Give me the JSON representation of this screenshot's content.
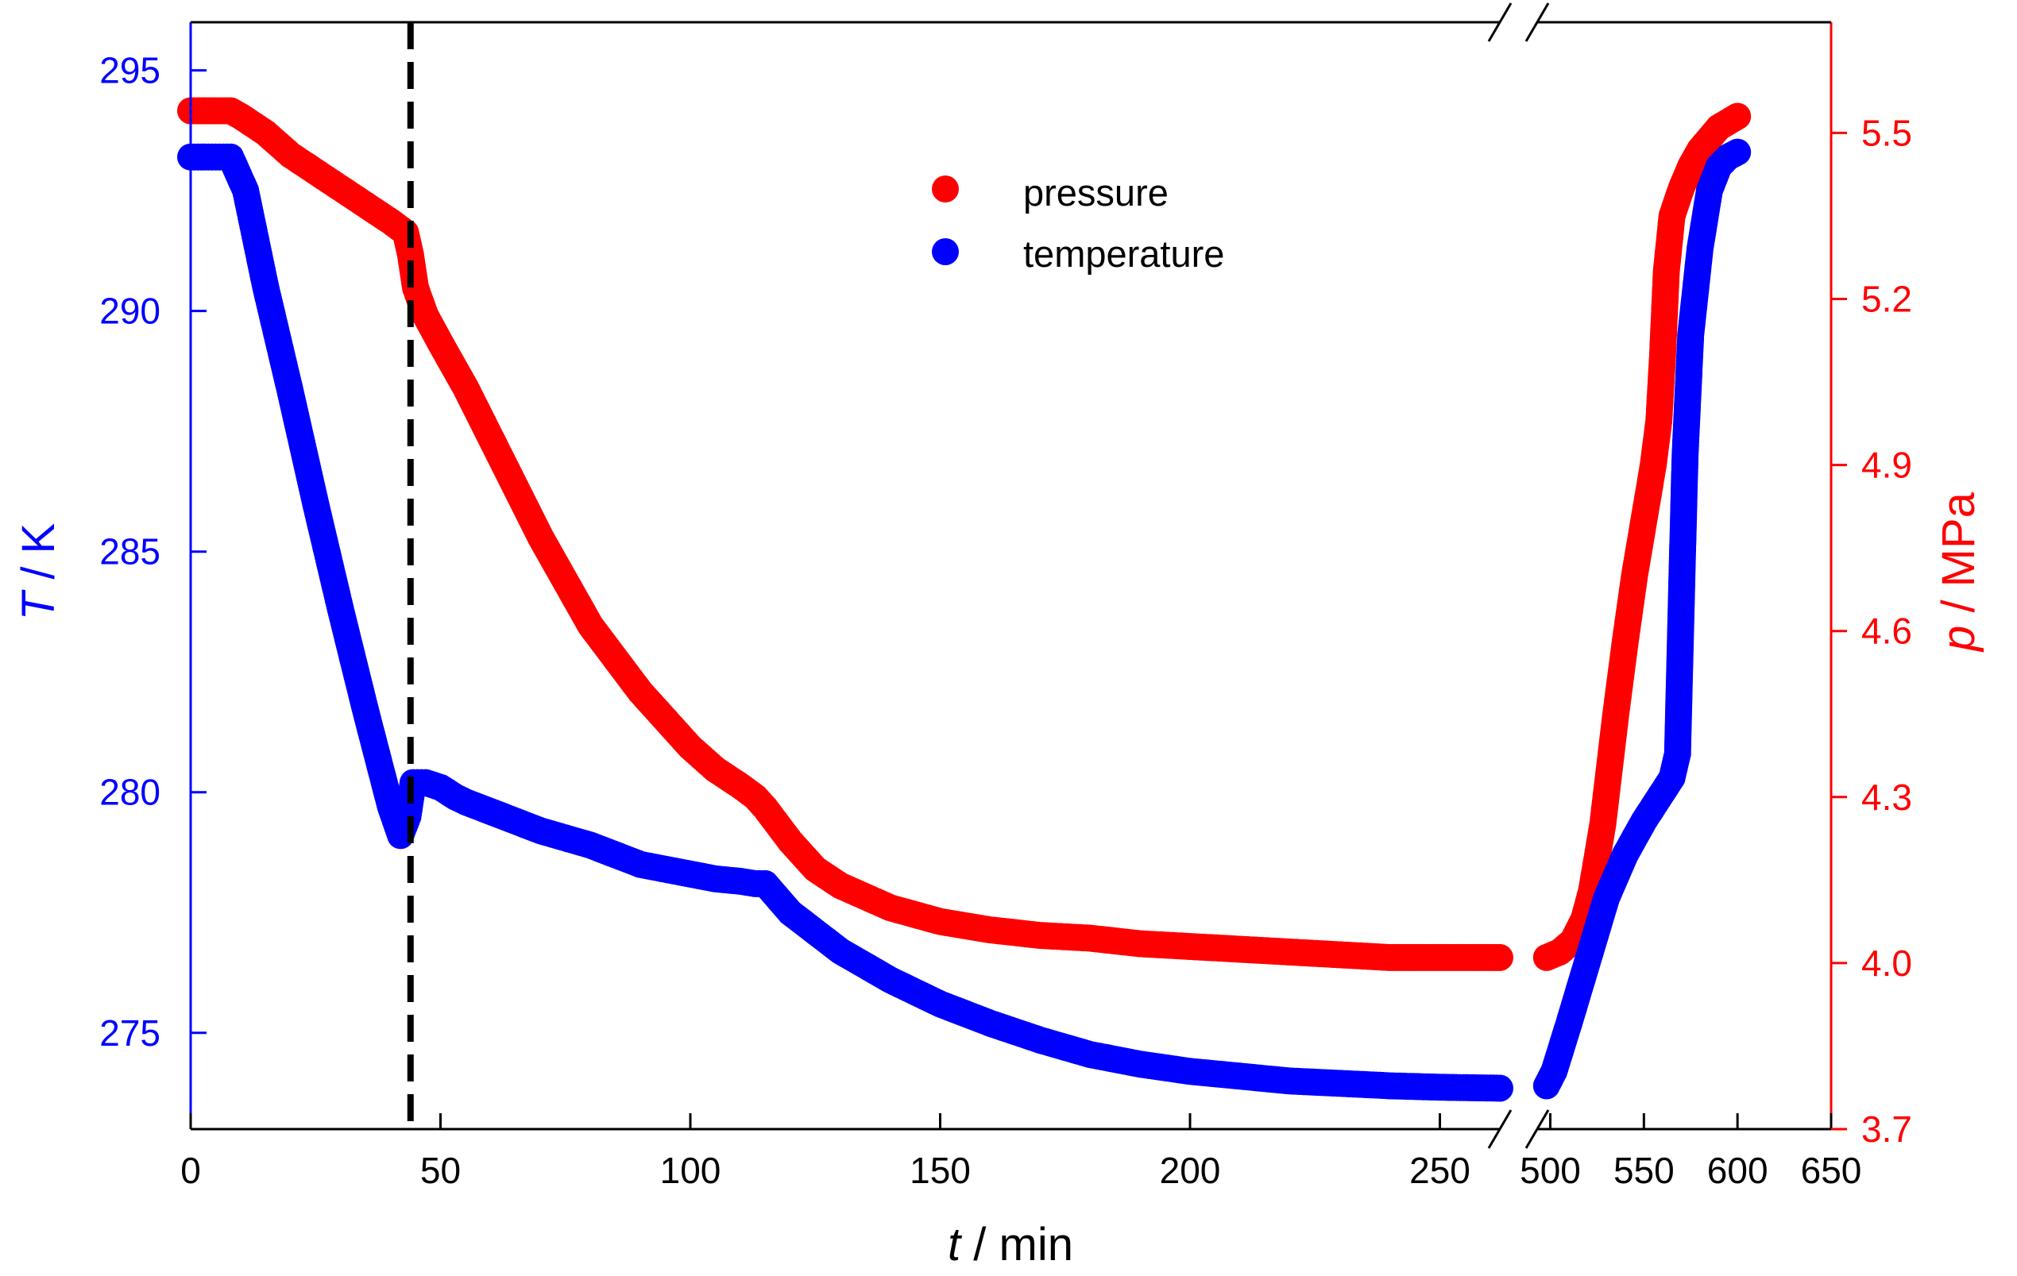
{
  "colors": {
    "temperature": "#0000FF",
    "pressure": "#FF0000",
    "axis": "#000000",
    "marker_line": "#000000"
  },
  "chart_data": {
    "type": "scatter",
    "title": "",
    "xlabel": {
      "italic": "t",
      "rest": " / min"
    },
    "ylabel_left": {
      "italic": "T",
      "rest": " / K"
    },
    "ylabel_right": {
      "italic": "p",
      "rest": " / MPa"
    },
    "x_axis_broken": true,
    "x_segments": [
      {
        "xlim": [
          0,
          262
        ],
        "ticks": [
          "0",
          "50",
          "100",
          "150",
          "200",
          "250"
        ],
        "tick_values": [
          0,
          50,
          100,
          150,
          200,
          250
        ]
      },
      {
        "xlim": [
          493,
          650
        ],
        "ticks": [
          "500",
          "550",
          "600",
          "650"
        ],
        "tick_values": [
          500,
          550,
          600,
          650
        ]
      }
    ],
    "y_left": {
      "lim": [
        273,
        296
      ],
      "ticks": [
        "275",
        "280",
        "285",
        "290",
        "295"
      ],
      "tick_values": [
        275,
        280,
        285,
        290,
        295
      ]
    },
    "y_right": {
      "lim": [
        3.7,
        5.7
      ],
      "ticks": [
        "3.7",
        "4.0",
        "4.3",
        "4.6",
        "4.9",
        "5.2",
        "5.5"
      ],
      "tick_values": [
        3.7,
        4.0,
        4.3,
        4.6,
        4.9,
        5.2,
        5.5
      ]
    },
    "vertical_line": {
      "x": 44,
      "style": "dashed"
    },
    "legend": {
      "position": "top-center",
      "entries": [
        "pressure",
        "temperature"
      ]
    },
    "series": [
      {
        "name": "temperature",
        "axis": "left",
        "points": [
          [
            0,
            293.2
          ],
          [
            5,
            293.2
          ],
          [
            8,
            293.2
          ],
          [
            11,
            292.5
          ],
          [
            15,
            290.5
          ],
          [
            20,
            288.3
          ],
          [
            25,
            286.0
          ],
          [
            30,
            283.8
          ],
          [
            35,
            281.7
          ],
          [
            40,
            279.7
          ],
          [
            42,
            279.1
          ],
          [
            43.5,
            279.5
          ],
          [
            44.5,
            280.2
          ],
          [
            47,
            280.2
          ],
          [
            50,
            280.1
          ],
          [
            53,
            279.9
          ],
          [
            55,
            279.8
          ],
          [
            60,
            279.6
          ],
          [
            65,
            279.4
          ],
          [
            70,
            279.2
          ],
          [
            80,
            278.9
          ],
          [
            90,
            278.5
          ],
          [
            100,
            278.3
          ],
          [
            105,
            278.2
          ],
          [
            110,
            278.15
          ],
          [
            113,
            278.1
          ],
          [
            115,
            278.1
          ],
          [
            120,
            277.5
          ],
          [
            130,
            276.7
          ],
          [
            140,
            276.1
          ],
          [
            150,
            275.6
          ],
          [
            160,
            275.2
          ],
          [
            170,
            274.85
          ],
          [
            180,
            274.55
          ],
          [
            190,
            274.35
          ],
          [
            200,
            274.2
          ],
          [
            210,
            274.1
          ],
          [
            220,
            274.0
          ],
          [
            230,
            273.95
          ],
          [
            240,
            273.9
          ],
          [
            250,
            273.87
          ],
          [
            262,
            273.85
          ],
          [
            498,
            273.9
          ],
          [
            502,
            274.2
          ],
          [
            510,
            275.2
          ],
          [
            520,
            276.5
          ],
          [
            530,
            277.8
          ],
          [
            540,
            278.7
          ],
          [
            550,
            279.4
          ],
          [
            560,
            280.0
          ],
          [
            565,
            280.3
          ],
          [
            568,
            280.8
          ],
          [
            570,
            284.0
          ],
          [
            572,
            287.0
          ],
          [
            575,
            289.5
          ],
          [
            580,
            291.3
          ],
          [
            585,
            292.5
          ],
          [
            590,
            293.0
          ],
          [
            595,
            293.2
          ],
          [
            600,
            293.3
          ]
        ]
      },
      {
        "name": "pressure",
        "axis": "right",
        "points": [
          [
            0,
            5.54
          ],
          [
            5,
            5.54
          ],
          [
            8,
            5.54
          ],
          [
            10,
            5.53
          ],
          [
            15,
            5.5
          ],
          [
            20,
            5.46
          ],
          [
            25,
            5.43
          ],
          [
            30,
            5.4
          ],
          [
            35,
            5.37
          ],
          [
            40,
            5.34
          ],
          [
            43,
            5.32
          ],
          [
            44,
            5.28
          ],
          [
            45,
            5.22
          ],
          [
            47,
            5.17
          ],
          [
            50,
            5.12
          ],
          [
            55,
            5.04
          ],
          [
            60,
            4.95
          ],
          [
            65,
            4.86
          ],
          [
            70,
            4.77
          ],
          [
            75,
            4.69
          ],
          [
            80,
            4.61
          ],
          [
            85,
            4.55
          ],
          [
            90,
            4.49
          ],
          [
            95,
            4.44
          ],
          [
            100,
            4.39
          ],
          [
            105,
            4.35
          ],
          [
            110,
            4.32
          ],
          [
            113,
            4.3
          ],
          [
            115,
            4.28
          ],
          [
            120,
            4.22
          ],
          [
            125,
            4.17
          ],
          [
            130,
            4.14
          ],
          [
            140,
            4.1
          ],
          [
            150,
            4.075
          ],
          [
            160,
            4.06
          ],
          [
            170,
            4.05
          ],
          [
            180,
            4.045
          ],
          [
            190,
            4.035
          ],
          [
            200,
            4.03
          ],
          [
            210,
            4.025
          ],
          [
            220,
            4.02
          ],
          [
            230,
            4.015
          ],
          [
            240,
            4.01
          ],
          [
            250,
            4.01
          ],
          [
            262,
            4.01
          ],
          [
            498,
            4.01
          ],
          [
            505,
            4.02
          ],
          [
            512,
            4.04
          ],
          [
            518,
            4.08
          ],
          [
            522,
            4.13
          ],
          [
            528,
            4.25
          ],
          [
            535,
            4.45
          ],
          [
            540,
            4.58
          ],
          [
            545,
            4.7
          ],
          [
            550,
            4.8
          ],
          [
            555,
            4.9
          ],
          [
            558,
            4.98
          ],
          [
            560,
            5.1
          ],
          [
            562,
            5.25
          ],
          [
            565,
            5.35
          ],
          [
            570,
            5.4
          ],
          [
            575,
            5.44
          ],
          [
            580,
            5.47
          ],
          [
            585,
            5.49
          ],
          [
            590,
            5.51
          ],
          [
            595,
            5.52
          ],
          [
            600,
            5.53
          ]
        ]
      }
    ]
  }
}
